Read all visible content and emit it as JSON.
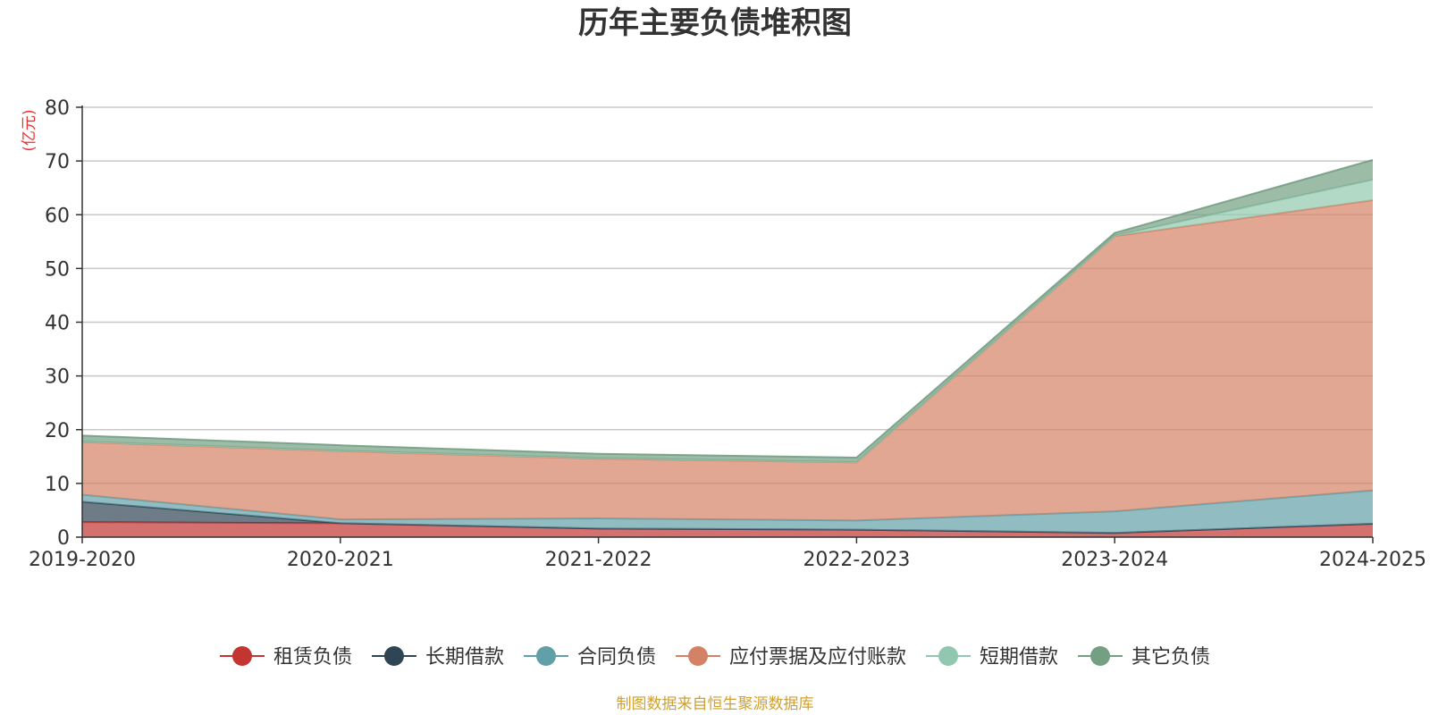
{
  "chart_data": {
    "type": "area",
    "stacked": true,
    "title": "历年主要负债堆积图",
    "unit_label": "(亿元)",
    "x": [
      "2019-2020",
      "2020-2021",
      "2021-2022",
      "2022-2023",
      "2023-2024",
      "2024-2025"
    ],
    "ylim": [
      0,
      80
    ],
    "yticks": [
      0,
      10,
      20,
      30,
      40,
      50,
      60,
      70,
      80
    ],
    "grid": true,
    "legend_position": "bottom",
    "series": [
      {
        "name": "租赁负债",
        "color": "#c23531",
        "values": [
          2.8,
          2.6,
          1.6,
          1.4,
          0.8,
          2.5
        ]
      },
      {
        "name": "长期借款",
        "color": "#2f4554",
        "values": [
          3.8,
          0.0,
          0.0,
          0.0,
          0.0,
          0.0
        ]
      },
      {
        "name": "合同负债",
        "color": "#61a0a8",
        "values": [
          1.3,
          0.7,
          1.9,
          1.7,
          4.0,
          6.2
        ]
      },
      {
        "name": "应付票据及应付账款",
        "color": "#d48265",
        "values": [
          9.8,
          12.7,
          11.1,
          10.8,
          51.2,
          54.0
        ]
      },
      {
        "name": "短期借款",
        "color": "#91c7ae",
        "values": [
          0.1,
          0.1,
          0.1,
          0.1,
          0.1,
          3.8
        ]
      },
      {
        "name": "其它负债",
        "color": "#749f83",
        "values": [
          1.1,
          1.0,
          0.8,
          0.8,
          0.5,
          3.7
        ]
      }
    ],
    "source": "制图数据来自恒生聚源数据库"
  }
}
